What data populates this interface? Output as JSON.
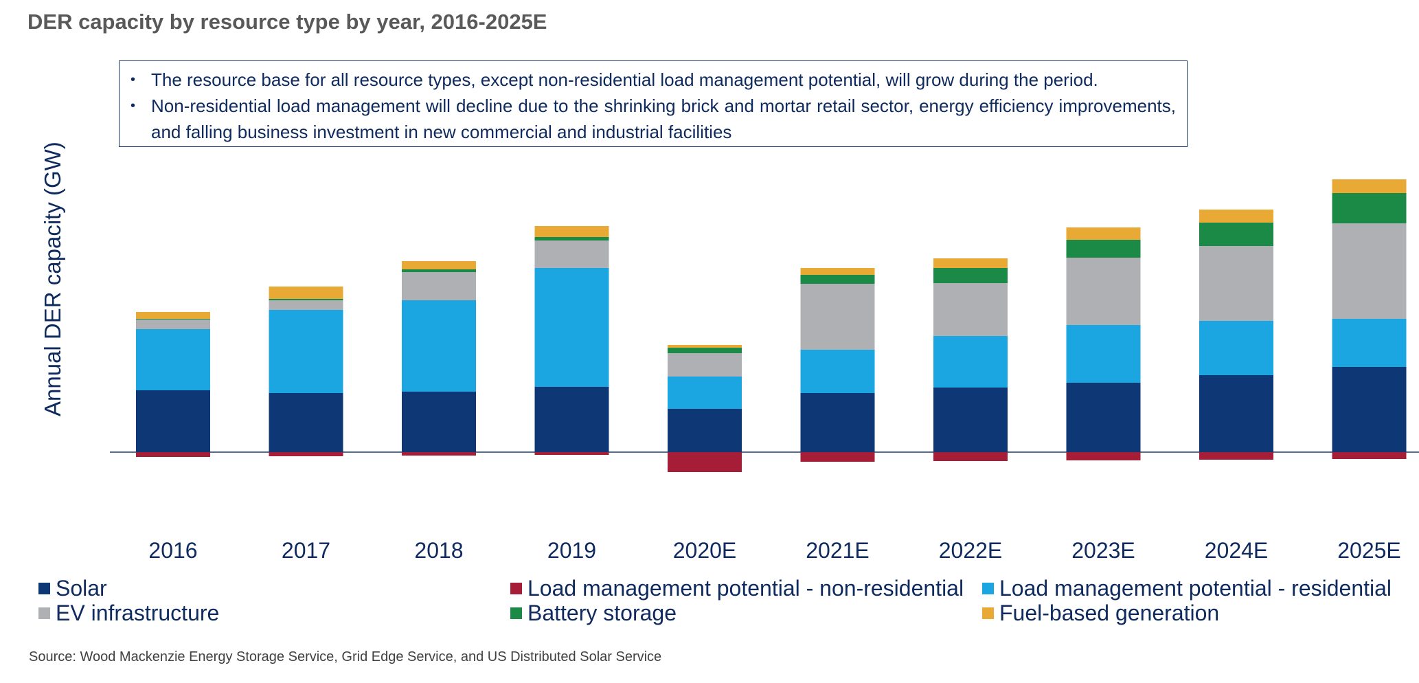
{
  "title": "DER capacity by resource type by year, 2016-2025E",
  "notes": [
    "The resource base for all resource types, except non-residential load management potential, will grow during the period.",
    "Non-residential load management will decline due to the shrinking brick and mortar retail sector, energy efficiency improvements, and falling business investment in new commercial and industrial facilities"
  ],
  "source": "Source: Wood Mackenzie Energy Storage Service, Grid Edge Service, and US Distributed Solar Service",
  "chart_data": {
    "type": "bar",
    "stacked": true,
    "title": "DER capacity by resource type by year, 2016-2025E",
    "xlabel": "",
    "ylabel": "Annual DER capacity  (GW)",
    "grid": false,
    "legend_position": "bottom",
    "categories": [
      "2016",
      "2017",
      "2018",
      "2019",
      "2020E",
      "2021E",
      "2022E",
      "2023E",
      "2024E",
      "2025E"
    ],
    "series": [
      {
        "name": "Solar",
        "color": "#0e3776",
        "values": [
          9.0,
          8.6,
          8.8,
          9.5,
          6.3,
          8.6,
          9.4,
          10.1,
          11.2,
          12.4
        ]
      },
      {
        "name": "Load management potential - non-residential",
        "color": "#a51d36",
        "values": [
          -0.7,
          -0.6,
          -0.5,
          -0.4,
          -2.9,
          -1.4,
          -1.3,
          -1.2,
          -1.1,
          -1.0
        ]
      },
      {
        "name": "Load management potential - residential",
        "color": "#1ca6e1",
        "values": [
          8.9,
          12.1,
          13.3,
          17.3,
          4.7,
          6.3,
          7.5,
          8.4,
          7.9,
          7.0
        ]
      },
      {
        "name": "EV infrastructure",
        "color": "#aeb0b3",
        "values": [
          1.4,
          1.4,
          4.1,
          4.0,
          3.4,
          9.6,
          7.7,
          9.8,
          10.9,
          13.9
        ]
      },
      {
        "name": "Battery storage",
        "color": "#1b8a46",
        "values": [
          0.1,
          0.2,
          0.4,
          0.5,
          0.8,
          1.3,
          2.2,
          2.6,
          3.4,
          4.4
        ]
      },
      {
        "name": "Fuel-based generation",
        "color": "#e9a935",
        "values": [
          1.0,
          1.8,
          1.2,
          1.6,
          0.4,
          1.0,
          1.4,
          1.8,
          1.9,
          2.0
        ]
      }
    ]
  }
}
